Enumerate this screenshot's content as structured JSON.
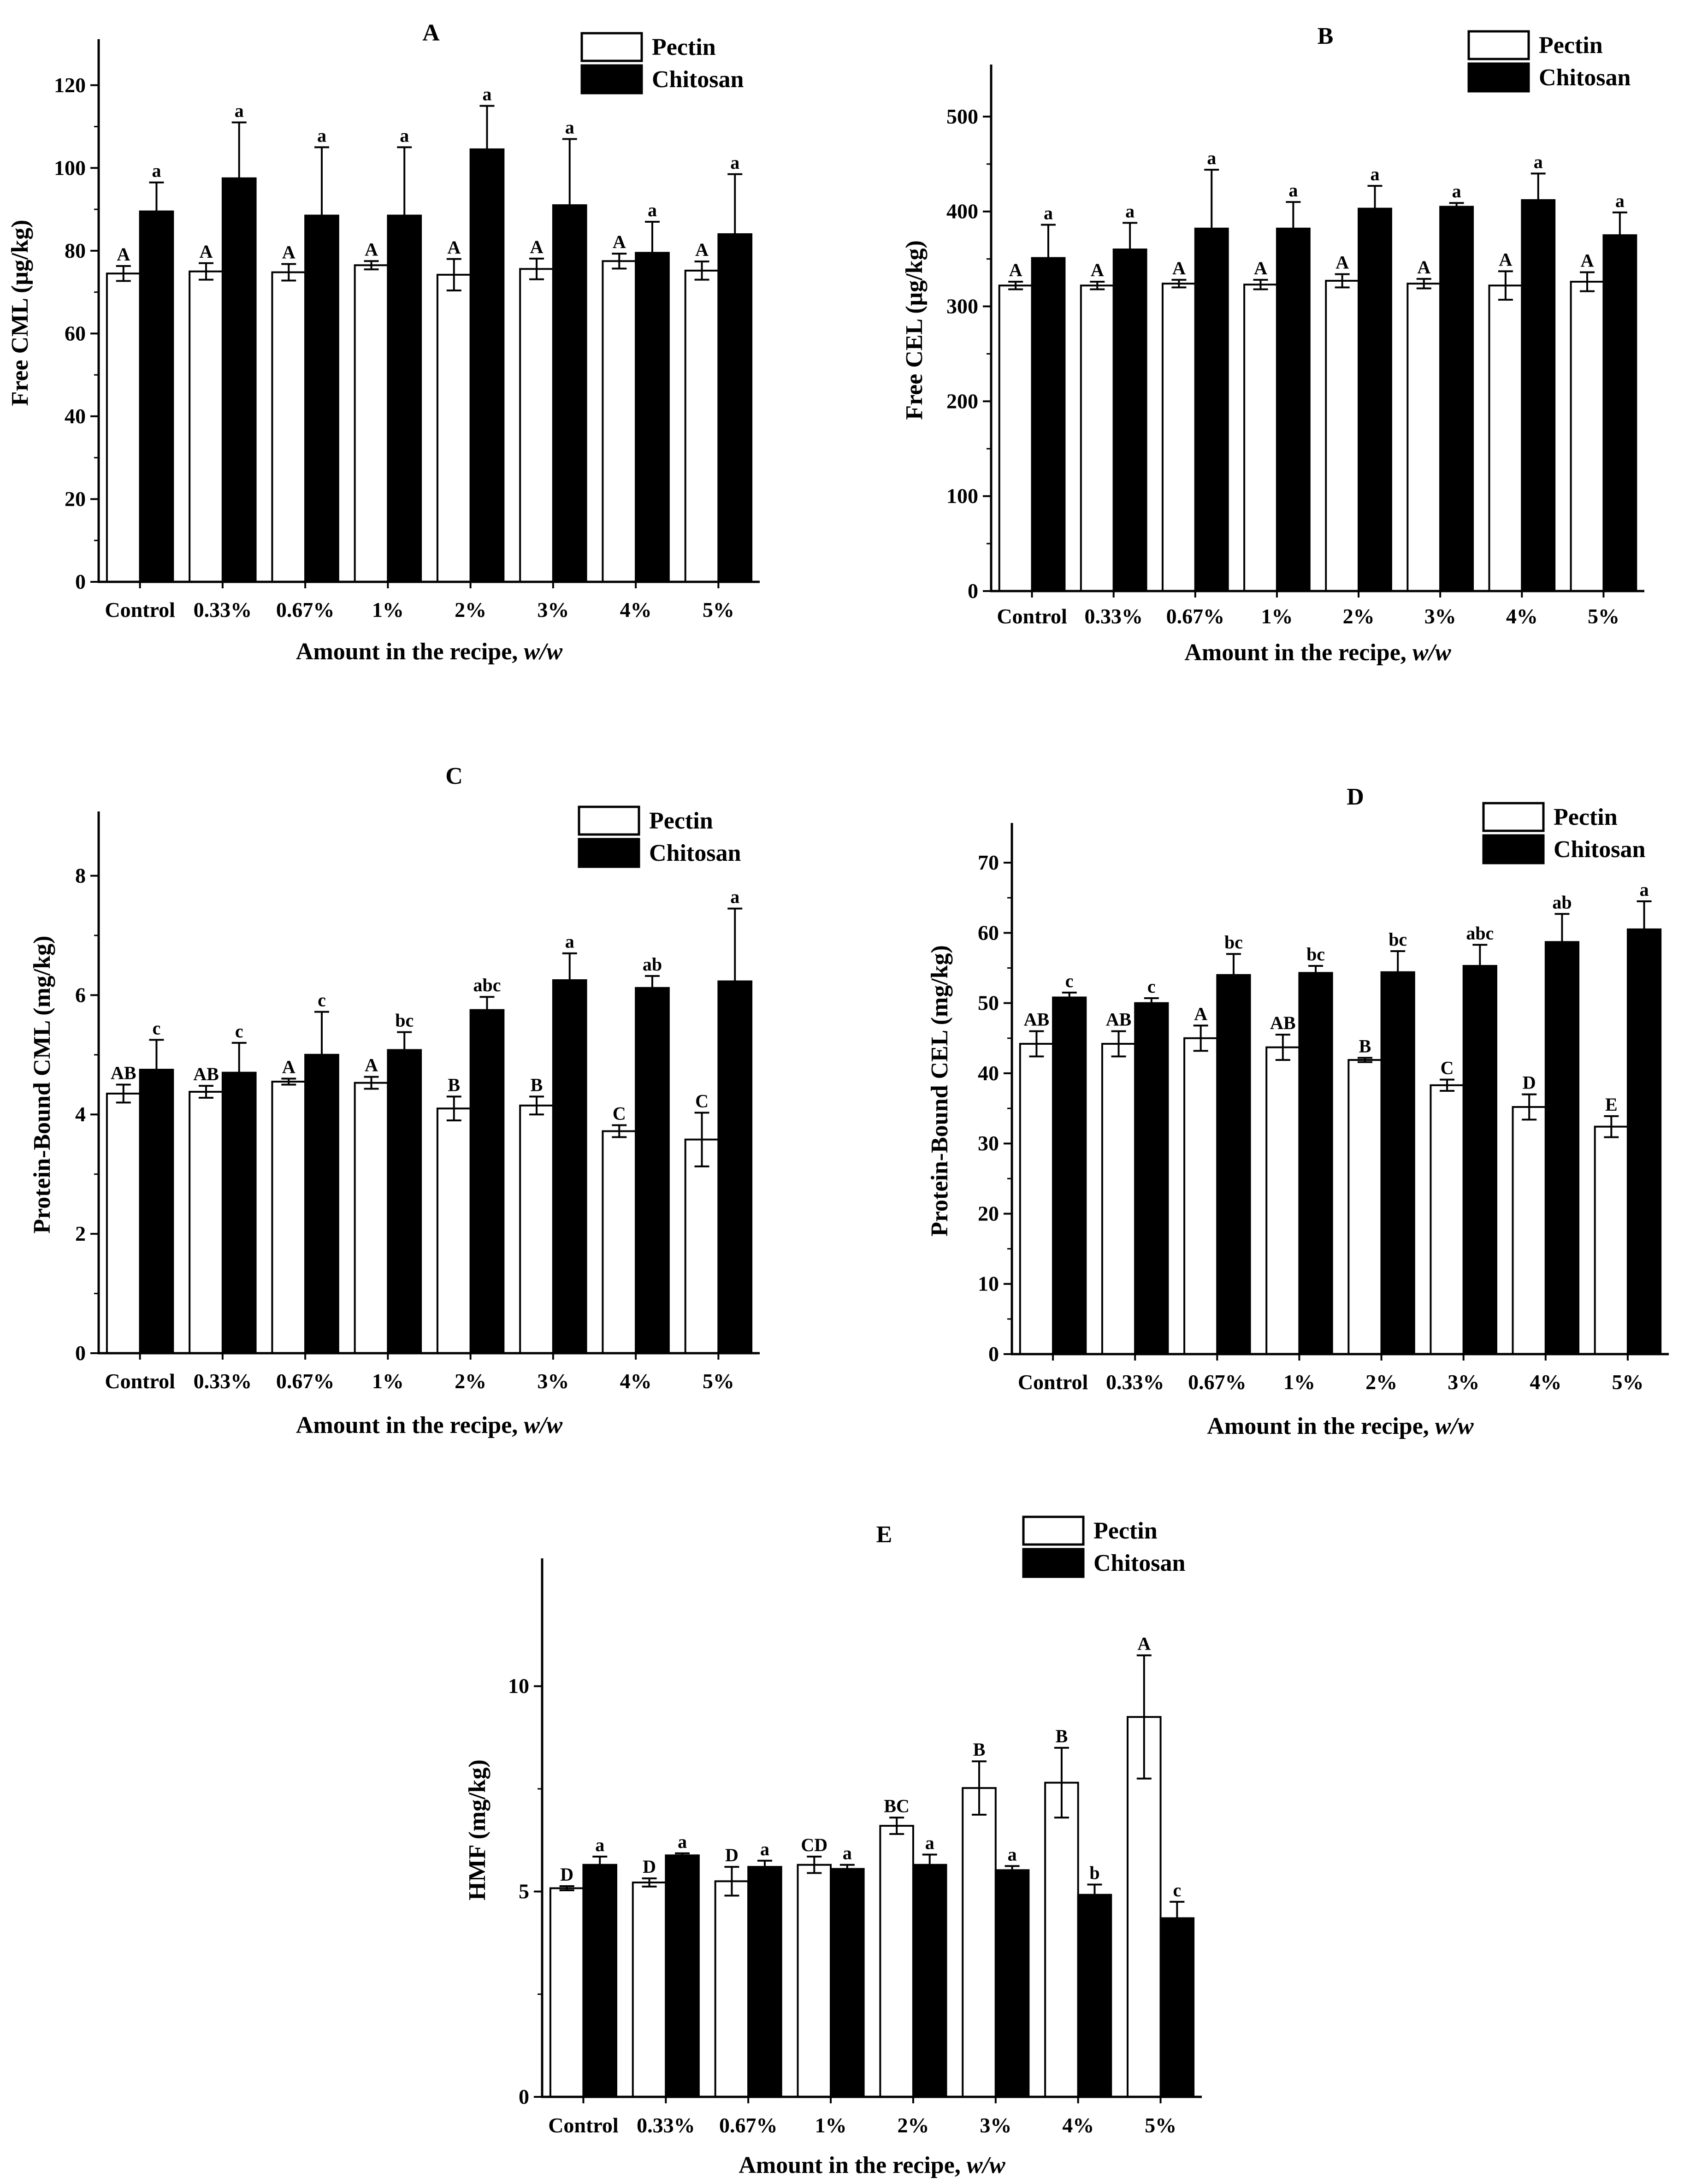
{
  "figure": {
    "legend": {
      "pectin": "Pectin",
      "chitosan": "Chitosan"
    },
    "colors": {
      "pectin": "#ffffff",
      "chitosan": "#000000",
      "stroke": "#000000"
    }
  },
  "chart_data": [
    {
      "type": "bar",
      "title": "A",
      "ylabel": "Free CML (μg/kg)",
      "xlabel_main": "Amount in the recipe, ",
      "xlabel_italic": "w/w",
      "categories": [
        "Control",
        "0.33%",
        "0.67%",
        "1%",
        "2%",
        "3%",
        "4%",
        "5%"
      ],
      "ylim": [
        0,
        130
      ],
      "yticks": [
        0,
        20,
        40,
        60,
        80,
        100,
        120
      ],
      "series": [
        {
          "name": "Pectin",
          "values": [
            74.5,
            75.0,
            74.8,
            76.5,
            74.2,
            75.6,
            77.5,
            75.2
          ],
          "errors": [
            1.8,
            2.0,
            2.0,
            1.0,
            3.8,
            2.5,
            1.8,
            2.2
          ],
          "labels": [
            "A",
            "A",
            "A",
            "A",
            "A",
            "A",
            "A",
            "A"
          ]
        },
        {
          "name": "Chitosan",
          "values": [
            89.5,
            97.5,
            88.5,
            88.5,
            104.5,
            91.0,
            79.5,
            84.0
          ],
          "errors": [
            7.0,
            13.5,
            16.5,
            16.5,
            10.5,
            16.0,
            7.5,
            14.5
          ],
          "labels": [
            "a",
            "a",
            "a",
            "a",
            "a",
            "a",
            "a",
            "a"
          ]
        }
      ]
    },
    {
      "type": "bar",
      "title": "B",
      "ylabel": "Free CEL (μg/kg)",
      "xlabel_main": "Amount in the recipe, ",
      "xlabel_italic": "w/w",
      "categories": [
        "Control",
        "0.33%",
        "0.67%",
        "1%",
        "2%",
        "3%",
        "4%",
        "5%"
      ],
      "ylim": [
        0,
        550
      ],
      "yticks": [
        0,
        100,
        200,
        300,
        400,
        500
      ],
      "series": [
        {
          "name": "Pectin",
          "values": [
            322,
            322,
            324,
            323,
            327,
            324,
            322,
            326
          ],
          "errors": [
            4,
            4,
            4,
            5,
            7,
            5,
            15,
            10
          ],
          "labels": [
            "A",
            "A",
            "A",
            "A",
            "A",
            "A",
            "A",
            "A"
          ]
        },
        {
          "name": "Chitosan",
          "values": [
            351,
            360,
            382,
            382,
            403,
            405,
            412,
            375
          ],
          "errors": [
            35,
            28,
            62,
            28,
            24,
            4,
            28,
            24
          ],
          "labels": [
            "a",
            "a",
            "a",
            "a",
            "a",
            "a",
            "a",
            "a"
          ]
        }
      ]
    },
    {
      "type": "bar",
      "title": "C",
      "ylabel": "Protein-Bound CML (mg/kg)",
      "xlabel_main": "Amount in the recipe, ",
      "xlabel_italic": "w/w",
      "categories": [
        "Control",
        "0.33%",
        "0.67%",
        "1%",
        "2%",
        "3%",
        "4%",
        "5%"
      ],
      "ylim": [
        0,
        9
      ],
      "yticks": [
        0,
        2,
        4,
        6,
        8
      ],
      "series": [
        {
          "name": "Pectin",
          "values": [
            4.35,
            4.38,
            4.55,
            4.53,
            4.1,
            4.15,
            3.72,
            3.58
          ],
          "errors": [
            0.15,
            0.1,
            0.05,
            0.1,
            0.2,
            0.15,
            0.1,
            0.45
          ],
          "labels": [
            "AB",
            "AB",
            "A",
            "A",
            "B",
            "B",
            "C",
            "C"
          ]
        },
        {
          "name": "Chitosan",
          "values": [
            4.75,
            4.7,
            5.0,
            5.08,
            5.75,
            6.25,
            6.12,
            6.23
          ],
          "errors": [
            0.5,
            0.5,
            0.72,
            0.3,
            0.22,
            0.45,
            0.2,
            1.22
          ],
          "labels": [
            "c",
            "c",
            "c",
            "bc",
            "abc",
            "a",
            "ab",
            "a"
          ]
        }
      ]
    },
    {
      "type": "bar",
      "title": "D",
      "ylabel": "Protein-Bound CEL (mg/kg)",
      "xlabel_main": "Amount in the recipe, ",
      "xlabel_italic": "w/w",
      "categories": [
        "Control",
        "0.33%",
        "0.67%",
        "1%",
        "2%",
        "3%",
        "4%",
        "5%"
      ],
      "ylim": [
        0,
        75
      ],
      "yticks": [
        0,
        10,
        20,
        30,
        40,
        50,
        60,
        70
      ],
      "series": [
        {
          "name": "Pectin",
          "values": [
            44.2,
            44.2,
            45.0,
            43.7,
            41.9,
            38.3,
            35.2,
            32.4
          ],
          "errors": [
            1.8,
            1.8,
            1.8,
            1.8,
            0.3,
            0.8,
            1.8,
            1.5
          ],
          "labels": [
            "AB",
            "AB",
            "A",
            "AB",
            "B",
            "C",
            "D",
            "E"
          ]
        },
        {
          "name": "Chitosan",
          "values": [
            50.8,
            50.0,
            54.0,
            54.3,
            54.4,
            55.3,
            58.7,
            60.5
          ],
          "errors": [
            0.7,
            0.7,
            3.0,
            1.0,
            3.0,
            3.0,
            4.0,
            4.0
          ],
          "labels": [
            "c",
            "c",
            "bc",
            "bc",
            "bc",
            "abc",
            "ab",
            "a"
          ]
        }
      ]
    },
    {
      "type": "bar",
      "title": "E",
      "ylabel": "HMF (mg/kg)",
      "xlabel_main": "Amount in the recipe, ",
      "xlabel_italic": "w/w",
      "categories": [
        "Control",
        "0.33%",
        "0.67%",
        "1%",
        "2%",
        "3%",
        "4%",
        "5%"
      ],
      "ylim": [
        0,
        13
      ],
      "yticks": [
        0,
        5,
        10
      ],
      "series": [
        {
          "name": "Pectin",
          "values": [
            5.08,
            5.22,
            5.25,
            5.65,
            6.6,
            7.52,
            7.65,
            9.25
          ],
          "errors": [
            0.05,
            0.1,
            0.35,
            0.2,
            0.2,
            0.65,
            0.85,
            1.5
          ],
          "labels": [
            "D",
            "D",
            "D",
            "CD",
            "BC",
            "B",
            "B",
            "A"
          ]
        },
        {
          "name": "Chitosan",
          "values": [
            5.65,
            5.88,
            5.6,
            5.55,
            5.65,
            5.52,
            4.92,
            4.35
          ],
          "errors": [
            0.2,
            0.05,
            0.15,
            0.1,
            0.25,
            0.1,
            0.25,
            0.4
          ],
          "labels": [
            "a",
            "a",
            "a",
            "a",
            "a",
            "a",
            "b",
            "c"
          ]
        }
      ]
    }
  ]
}
